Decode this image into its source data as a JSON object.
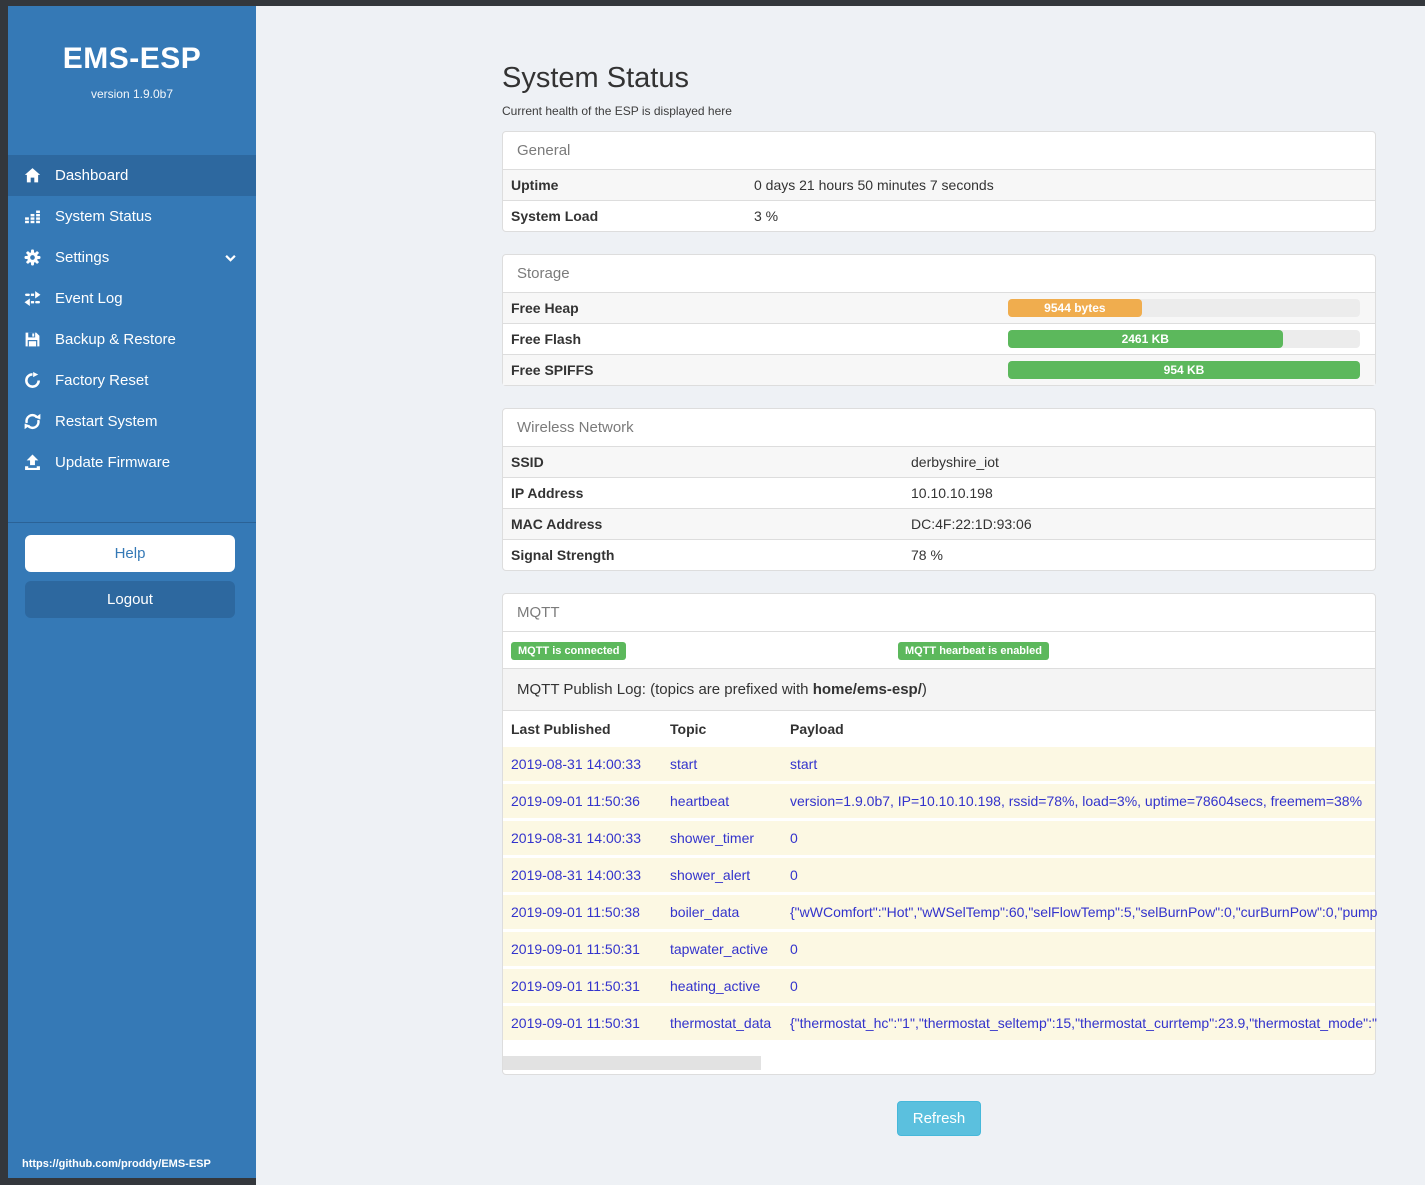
{
  "sidebar": {
    "title": "EMS-ESP",
    "version": "version 1.9.0b7",
    "items": [
      {
        "label": "Dashboard",
        "icon": "home-icon",
        "active": true
      },
      {
        "label": "System Status",
        "icon": "chart-bars-icon",
        "active": false
      },
      {
        "label": "Settings",
        "icon": "gear-icon",
        "active": false,
        "chevron": true
      },
      {
        "label": "Event Log",
        "icon": "exchange-arrows-icon",
        "active": false
      },
      {
        "label": "Backup & Restore",
        "icon": "floppy-save-icon",
        "active": false
      },
      {
        "label": "Factory Reset",
        "icon": "undo-icon",
        "active": false
      },
      {
        "label": "Restart System",
        "icon": "sync-icon",
        "active": false
      },
      {
        "label": "Update Firmware",
        "icon": "upload-icon",
        "active": false
      }
    ],
    "help_label": "Help",
    "logout_label": "Logout",
    "footer_link": "https://github.com/proddy/EMS-ESP"
  },
  "page": {
    "title": "System Status",
    "subtitle": "Current health of the ESP is displayed here",
    "refresh_label": "Refresh"
  },
  "general": {
    "header": "General",
    "rows": [
      {
        "label": "Uptime",
        "value": "0 days 21 hours 50 minutes 7 seconds"
      },
      {
        "label": "System Load",
        "value": "3 %"
      }
    ]
  },
  "storage": {
    "header": "Storage",
    "bars": [
      {
        "label": "Free Heap",
        "value": "9544 bytes",
        "percent": 38,
        "color": "#f0ad4e"
      },
      {
        "label": "Free Flash",
        "value": "2461 KB",
        "percent": 78,
        "color": "#5cb85c"
      },
      {
        "label": "Free SPIFFS",
        "value": "954 KB",
        "percent": 100,
        "color": "#5cb85c"
      }
    ]
  },
  "wireless": {
    "header": "Wireless Network",
    "rows": [
      {
        "label": "SSID",
        "value": "derbyshire_iot"
      },
      {
        "label": "IP Address",
        "value": "10.10.10.198"
      },
      {
        "label": "MAC Address",
        "value": "DC:4F:22:1D:93:06"
      },
      {
        "label": "Signal Strength",
        "value": "78 %"
      }
    ]
  },
  "mqtt": {
    "header": "MQTT",
    "badges": [
      "MQTT is connected",
      "MQTT hearbeat is enabled"
    ],
    "log_prefix": "MQTT Publish Log: (topics are prefixed with ",
    "log_bold": "home/ems-esp/",
    "log_suffix": ")",
    "columns": [
      "Last Published",
      "Topic",
      "Payload"
    ],
    "rows": [
      {
        "time": "2019-08-31 14:00:33",
        "topic": "start",
        "payload": "start"
      },
      {
        "time": "2019-09-01 11:50:36",
        "topic": "heartbeat",
        "payload": "version=1.9.0b7, IP=10.10.10.198, rssid=78%, load=3%, uptime=78604secs, freemem=38%"
      },
      {
        "time": "2019-08-31 14:00:33",
        "topic": "shower_timer",
        "payload": "0"
      },
      {
        "time": "2019-08-31 14:00:33",
        "topic": "shower_alert",
        "payload": "0"
      },
      {
        "time": "2019-09-01 11:50:38",
        "topic": "boiler_data",
        "payload": "{\"wWComfort\":\"Hot\",\"wWSelTemp\":60,\"selFlowTemp\":5,\"selBurnPow\":0,\"curBurnPow\":0,\"pump"
      },
      {
        "time": "2019-09-01 11:50:31",
        "topic": "tapwater_active",
        "payload": "0"
      },
      {
        "time": "2019-09-01 11:50:31",
        "topic": "heating_active",
        "payload": "0"
      },
      {
        "time": "2019-09-01 11:50:31",
        "topic": "thermostat_data",
        "payload": "{\"thermostat_hc\":\"1\",\"thermostat_seltemp\":15,\"thermostat_currtemp\":23.9,\"thermostat_mode\":\""
      }
    ]
  },
  "colors": {
    "sidebar_blue": "#3579b6",
    "sidebar_active": "#2d689f",
    "frame_dark": "#33373c",
    "warning_orange": "#f0ad4e",
    "success_green": "#5cb85c",
    "info_cyan": "#5bc0de",
    "log_row_bg": "#fcf8e3",
    "log_text_blue": "#3333cc"
  }
}
